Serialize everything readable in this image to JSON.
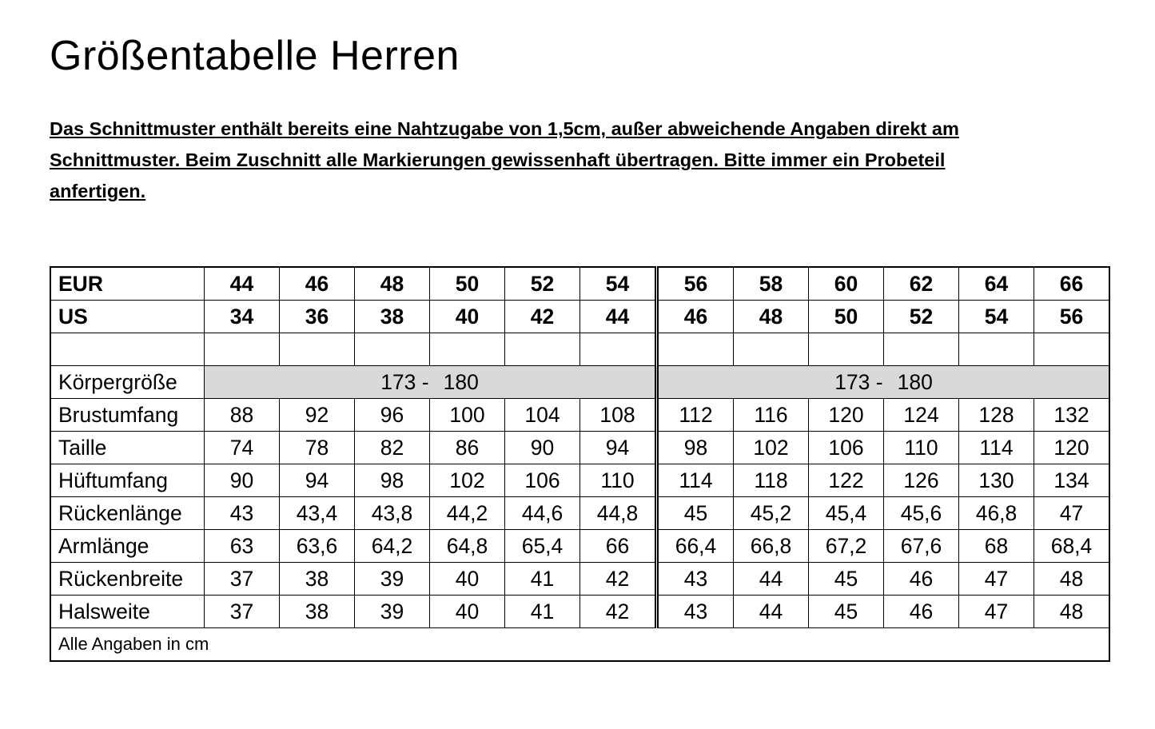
{
  "title": "Größentabelle Herren",
  "intro": "Das Schnittmuster enthält bereits eine Nahtzugabe von 1,5cm, außer abweichende Angaben direkt am Schnittmuster. Beim Zuschnitt alle Markierungen gewissenhaft übertragen. Bitte immer ein Probeteil anfertigen.",
  "table": {
    "header_rows": [
      {
        "label": "EUR",
        "values": [
          "44",
          "46",
          "48",
          "50",
          "52",
          "54",
          "56",
          "58",
          "60",
          "62",
          "64",
          "66"
        ]
      },
      {
        "label": "US",
        "values": [
          "34",
          "36",
          "38",
          "40",
          "42",
          "44",
          "46",
          "48",
          "50",
          "52",
          "54",
          "56"
        ]
      }
    ],
    "height_row": {
      "label": "Körpergröße",
      "groups": [
        {
          "from": "173 -",
          "to": "180"
        },
        {
          "from": "173 -",
          "to": "180"
        }
      ]
    },
    "rows": [
      {
        "label": "Brustumfang",
        "values": [
          "88",
          "92",
          "96",
          "100",
          "104",
          "108",
          "112",
          "116",
          "120",
          "124",
          "128",
          "132"
        ]
      },
      {
        "label": "Taille",
        "values": [
          "74",
          "78",
          "82",
          "86",
          "90",
          "94",
          "98",
          "102",
          "106",
          "110",
          "114",
          "120"
        ]
      },
      {
        "label": "Hüftumfang",
        "values": [
          "90",
          "94",
          "98",
          "102",
          "106",
          "110",
          "114",
          "118",
          "122",
          "126",
          "130",
          "134"
        ]
      },
      {
        "label": "Rückenlänge",
        "values": [
          "43",
          "43,4",
          "43,8",
          "44,2",
          "44,6",
          "44,8",
          "45",
          "45,2",
          "45,4",
          "45,6",
          "46,8",
          "47"
        ]
      },
      {
        "label": "Armlänge",
        "values": [
          "63",
          "63,6",
          "64,2",
          "64,8",
          "65,4",
          "66",
          "66,4",
          "66,8",
          "67,2",
          "67,6",
          "68",
          "68,4"
        ]
      },
      {
        "label": "Rückenbreite",
        "values": [
          "37",
          "38",
          "39",
          "40",
          "41",
          "42",
          "43",
          "44",
          "45",
          "46",
          "47",
          "48"
        ]
      },
      {
        "label": "Halsweite",
        "values": [
          "37",
          "38",
          "39",
          "40",
          "41",
          "42",
          "43",
          "44",
          "45",
          "46",
          "47",
          "48"
        ]
      }
    ],
    "note": "Alle Angaben in cm",
    "highlight_color": "#d9d9d9"
  }
}
